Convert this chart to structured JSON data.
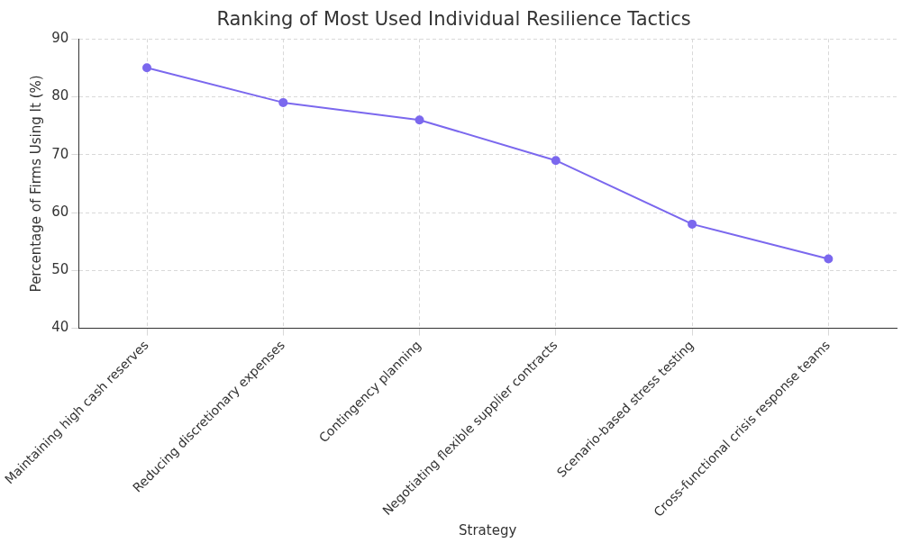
{
  "chart_data": {
    "type": "line",
    "title": "Ranking of Most Used Individual Resilience Tactics",
    "xlabel": "Strategy",
    "ylabel": "Percentage of Firms Using It (%)",
    "categories": [
      "Maintaining high cash reserves",
      "Reducing discretionary expenses",
      "Contingency planning",
      "Negotiating flexible supplier contracts",
      "Scenario-based stress testing",
      "Cross-functional crisis response teams"
    ],
    "series": [
      {
        "color": "#7b68ee",
        "values": [
          85,
          79,
          76,
          69,
          58,
          52
        ]
      }
    ],
    "ylim": [
      40,
      90
    ],
    "yticks": [
      40,
      50,
      60,
      70,
      80,
      90
    ],
    "grid": true,
    "marker": "circle",
    "line_style": "solid"
  }
}
